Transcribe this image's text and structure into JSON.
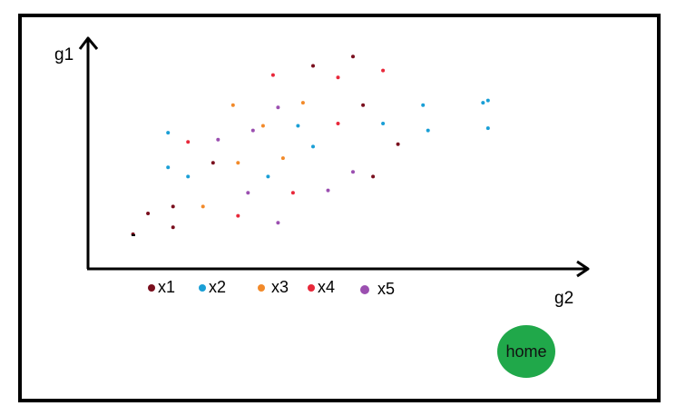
{
  "chart_data": {
    "type": "scatter",
    "xlabel": "g2",
    "ylabel": "g1",
    "xlim": [
      0,
      100
    ],
    "ylim": [
      0,
      100
    ],
    "series": [
      {
        "name": "x1",
        "color": "#7a0f1e",
        "points": [
          [
            9,
            15
          ],
          [
            12,
            24
          ],
          [
            17,
            27
          ],
          [
            17,
            18
          ],
          [
            25,
            46
          ],
          [
            45,
            88
          ],
          [
            53,
            92
          ],
          [
            55,
            71
          ],
          [
            57,
            40
          ],
          [
            62,
            54
          ]
        ]
      },
      {
        "name": "x2",
        "color": "#1a9fd6",
        "points": [
          [
            16,
            59
          ],
          [
            16,
            44
          ],
          [
            20,
            40
          ],
          [
            36,
            40
          ],
          [
            42,
            62
          ],
          [
            45,
            53
          ],
          [
            59,
            63
          ],
          [
            67,
            71
          ],
          [
            68,
            60
          ],
          [
            79,
            72
          ],
          [
            80,
            73
          ],
          [
            80,
            61
          ]
        ]
      },
      {
        "name": "x3",
        "color": "#f28a2a",
        "points": [
          [
            23,
            27
          ],
          [
            29,
            71
          ],
          [
            30,
            46
          ],
          [
            35,
            62
          ],
          [
            39,
            48
          ],
          [
            43,
            72
          ]
        ]
      },
      {
        "name": "x4",
        "color": "#e8283a",
        "points": [
          [
            20,
            55
          ],
          [
            30,
            23
          ],
          [
            37,
            84
          ],
          [
            41,
            33
          ],
          [
            50,
            83
          ],
          [
            50,
            63
          ],
          [
            59,
            86
          ]
        ]
      },
      {
        "name": "x5",
        "color": "#9b4fb0",
        "points": [
          [
            26,
            56
          ],
          [
            32,
            33
          ],
          [
            33,
            60
          ],
          [
            38,
            20
          ],
          [
            38,
            70
          ],
          [
            48,
            34
          ],
          [
            53,
            42
          ]
        ]
      }
    ]
  },
  "legend": [
    {
      "label": "x1",
      "color": "#7a0f1e"
    },
    {
      "label": "x2",
      "color": "#1a9fd6"
    },
    {
      "label": "x3",
      "color": "#f28a2a"
    },
    {
      "label": "x4",
      "color": "#e8283a"
    },
    {
      "label": "x5",
      "color": "#9b4fb0"
    }
  ],
  "home": {
    "label": "home",
    "color": "#20a84a"
  }
}
